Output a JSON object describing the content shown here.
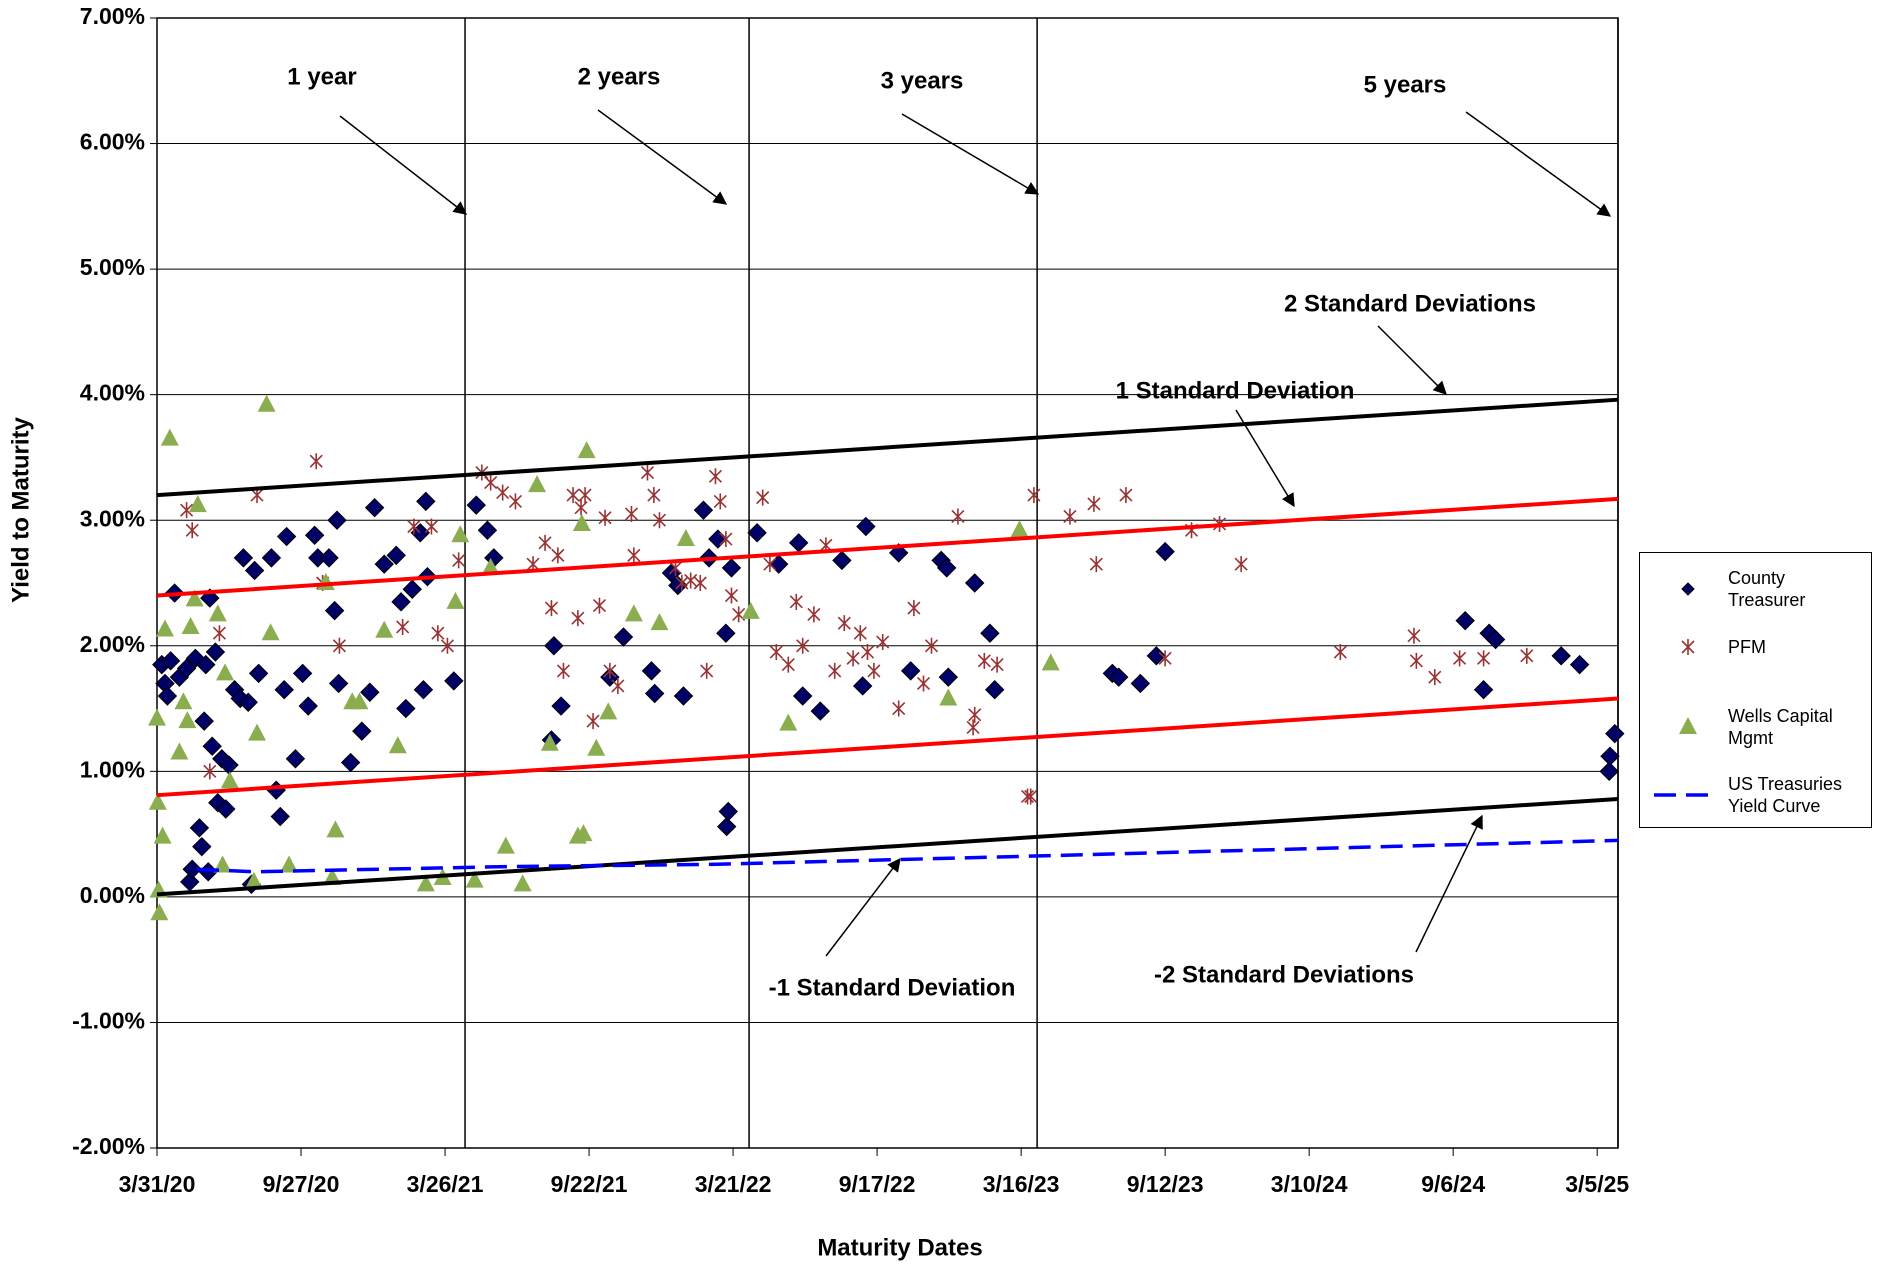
{
  "chart_data": {
    "type": "scatter",
    "y_axis_label": "Yield to Maturity",
    "x_axis_label": "Maturity Dates",
    "xlim": [
      "2020-03-31",
      "2025-03-31"
    ],
    "ylim": [
      -2,
      7
    ],
    "grid": true,
    "legend": "right",
    "xticks": [
      {
        "value": "2020-03-31",
        "label": "3/31/20"
      },
      {
        "value": "2020-09-27",
        "label": "9/27/20"
      },
      {
        "value": "2021-03-26",
        "label": "3/26/21"
      },
      {
        "value": "2021-09-22",
        "label": "9/22/21"
      },
      {
        "value": "2022-03-21",
        "label": "3/21/22"
      },
      {
        "value": "2022-09-17",
        "label": "9/17/22"
      },
      {
        "value": "2023-03-16",
        "label": "3/16/23"
      },
      {
        "value": "2023-09-12",
        "label": "9/12/23"
      },
      {
        "value": "2024-03-10",
        "label": "3/10/24"
      },
      {
        "value": "2024-09-06",
        "label": "9/6/24"
      },
      {
        "value": "2025-03-05",
        "label": "3/5/25"
      }
    ],
    "yticks": [
      {
        "value": 7,
        "label": "7.00%"
      },
      {
        "value": 6,
        "label": "6.00%"
      },
      {
        "value": 5,
        "label": "5.00%"
      },
      {
        "value": 4,
        "label": "4.00%"
      },
      {
        "value": 3,
        "label": "3.00%"
      },
      {
        "value": 2,
        "label": "2.00%"
      },
      {
        "value": 1,
        "label": "1.00%"
      },
      {
        "value": 0,
        "label": "0.00%"
      },
      {
        "value": -1,
        "label": "-1.00%"
      },
      {
        "value": -2,
        "label": "-2.00%"
      }
    ],
    "series": [
      {
        "name": "County Treasurer",
        "type": "scatter",
        "marker": "diamond",
        "color": "#000066",
        "x": [
          "2020-04-06",
          "2020-04-10",
          "2020-04-13",
          "2020-04-17",
          "2020-04-22",
          "2020-04-28",
          "2020-05-07",
          "2020-05-11",
          "2020-05-14",
          "2020-05-18",
          "2020-05-23",
          "2020-05-26",
          "2020-05-29",
          "2020-05-31",
          "2020-06-03",
          "2020-06-05",
          "2020-06-08",
          "2020-06-12",
          "2020-06-15",
          "2020-06-20",
          "2020-06-25",
          "2020-06-29",
          "2020-07-06",
          "2020-07-13",
          "2020-07-17",
          "2020-07-23",
          "2020-07-27",
          "2020-07-31",
          "2020-08-05",
          "2020-08-21",
          "2020-08-27",
          "2020-09-01",
          "2020-09-06",
          "2020-09-09",
          "2020-09-20",
          "2020-09-29",
          "2020-10-06",
          "2020-10-14",
          "2020-10-18",
          "2020-11-01",
          "2020-11-08",
          "2020-11-11",
          "2020-11-13",
          "2020-11-28",
          "2020-12-12",
          "2020-12-22",
          "2020-12-28",
          "2021-01-09",
          "2021-01-24",
          "2021-01-30",
          "2021-02-05",
          "2021-02-13",
          "2021-02-23",
          "2021-02-27",
          "2021-03-02",
          "2021-03-04",
          "2021-04-06",
          "2021-05-04",
          "2021-05-18",
          "2021-05-26",
          "2021-08-06",
          "2021-08-09",
          "2021-08-18",
          "2021-10-18",
          "2021-11-04",
          "2021-12-09",
          "2021-12-13",
          "2022-01-03",
          "2022-01-11",
          "2022-01-18",
          "2022-02-12",
          "2022-02-19",
          "2022-03-02",
          "2022-03-12",
          "2022-03-13",
          "2022-03-15",
          "2022-03-19",
          "2022-04-20",
          "2022-05-17",
          "2022-06-11",
          "2022-06-16",
          "2022-07-08",
          "2022-08-04",
          "2022-08-30",
          "2022-09-03",
          "2022-10-14",
          "2022-10-29",
          "2022-12-06",
          "2022-12-13",
          "2022-12-15",
          "2023-01-17",
          "2023-02-05",
          "2023-02-11",
          "2023-07-08",
          "2023-07-16",
          "2023-08-12",
          "2023-09-01",
          "2023-09-12",
          "2024-09-21",
          "2024-10-14",
          "2024-10-21",
          "2024-10-29",
          "2025-01-19",
          "2025-02-11",
          "2025-03-20",
          "2025-03-21",
          "2025-03-27"
        ],
        "values": [
          1.85,
          1.7,
          1.6,
          1.88,
          2.42,
          1.75,
          1.82,
          0.12,
          0.22,
          1.9,
          0.55,
          0.4,
          1.4,
          1.85,
          0.2,
          2.38,
          1.2,
          1.95,
          0.75,
          1.1,
          0.7,
          1.05,
          1.65,
          1.58,
          2.7,
          1.55,
          0.1,
          2.6,
          1.78,
          2.7,
          0.85,
          0.64,
          1.65,
          2.87,
          1.1,
          1.78,
          1.52,
          2.88,
          2.7,
          2.7,
          2.28,
          3.0,
          1.7,
          1.07,
          1.32,
          1.63,
          3.1,
          2.65,
          2.72,
          2.35,
          1.5,
          2.45,
          2.9,
          1.65,
          3.15,
          2.55,
          1.72,
          3.12,
          2.92,
          2.7,
          1.25,
          2.0,
          1.52,
          1.75,
          2.07,
          1.8,
          1.62,
          2.58,
          2.48,
          1.6,
          3.08,
          2.7,
          2.85,
          2.1,
          0.56,
          0.68,
          2.62,
          2.9,
          2.65,
          2.82,
          1.6,
          1.48,
          2.68,
          1.68,
          2.95,
          2.74,
          1.8,
          2.68,
          2.62,
          1.75,
          2.5,
          2.1,
          1.65,
          1.78,
          1.75,
          1.7,
          1.92,
          2.75,
          2.2,
          1.65,
          2.1,
          2.05,
          1.92,
          1.85,
          1.0,
          1.12,
          1.3
        ]
      },
      {
        "name": "PFM",
        "type": "scatter",
        "marker": "x",
        "color": "#993333",
        "x": [
          "2020-05-07",
          "2020-05-14",
          "2020-06-05",
          "2020-06-17",
          "2020-08-03",
          "2020-10-16",
          "2020-10-24",
          "2020-11-14",
          "2021-02-01",
          "2021-02-15",
          "2021-03-09",
          "2021-03-17",
          "2021-03-29",
          "2021-04-12",
          "2021-05-11",
          "2021-05-22",
          "2021-06-06",
          "2021-06-22",
          "2021-07-14",
          "2021-07-29",
          "2021-08-06",
          "2021-08-14",
          "2021-08-21",
          "2021-09-02",
          "2021-09-08",
          "2021-09-12",
          "2021-09-17",
          "2021-09-27",
          "2021-10-05",
          "2021-10-12",
          "2021-10-18",
          "2021-10-28",
          "2021-11-14",
          "2021-11-17",
          "2021-12-04",
          "2021-12-12",
          "2021-12-19",
          "2022-01-08",
          "2022-01-16",
          "2022-01-27",
          "2022-02-08",
          "2022-02-16",
          "2022-02-27",
          "2022-03-05",
          "2022-03-12",
          "2022-03-19",
          "2022-03-28",
          "2022-04-27",
          "2022-05-06",
          "2022-05-14",
          "2022-05-29",
          "2022-06-08",
          "2022-06-16",
          "2022-06-30",
          "2022-07-15",
          "2022-07-26",
          "2022-08-07",
          "2022-08-18",
          "2022-08-27",
          "2022-09-05",
          "2022-09-13",
          "2022-09-24",
          "2022-10-14",
          "2022-11-02",
          "2022-11-14",
          "2022-11-24",
          "2022-12-27",
          "2023-01-15",
          "2023-01-17",
          "2023-01-29",
          "2023-02-14",
          "2023-03-24",
          "2023-03-28",
          "2023-04-01",
          "2023-05-16",
          "2023-06-15",
          "2023-06-18",
          "2023-07-25",
          "2023-09-12",
          "2023-10-15",
          "2023-11-19",
          "2023-12-16",
          "2024-04-18",
          "2024-07-19",
          "2024-07-22",
          "2024-08-14",
          "2024-09-14",
          "2024-10-14",
          "2024-12-07"
        ],
        "values": [
          3.08,
          2.92,
          1.0,
          2.1,
          3.2,
          3.47,
          2.5,
          2.0,
          2.15,
          2.95,
          2.95,
          2.1,
          2.0,
          2.68,
          3.38,
          3.3,
          3.22,
          3.15,
          2.65,
          2.82,
          2.3,
          2.72,
          1.8,
          3.2,
          2.22,
          3.1,
          3.2,
          1.4,
          2.32,
          3.02,
          1.8,
          1.68,
          3.05,
          2.72,
          3.38,
          3.2,
          3.0,
          2.62,
          2.5,
          2.52,
          2.5,
          1.8,
          3.35,
          3.15,
          2.85,
          2.4,
          2.25,
          3.18,
          2.65,
          1.95,
          1.85,
          2.35,
          2.0,
          2.25,
          2.8,
          1.8,
          2.18,
          1.9,
          2.1,
          1.95,
          1.8,
          2.03,
          1.5,
          2.3,
          1.7,
          2.0,
          3.03,
          1.35,
          1.45,
          1.88,
          1.85,
          0.8,
          0.8,
          3.2,
          3.03,
          3.13,
          2.65,
          3.2,
          1.9,
          2.92,
          2.97,
          2.65,
          1.95,
          2.08,
          1.88,
          1.75,
          1.9,
          1.9,
          1.92
        ]
      },
      {
        "name": "Wells Capital Mgmt",
        "type": "scatter",
        "marker": "triangle",
        "color": "#8AAE4F",
        "x": [
          "2020-03-31",
          "2020-04-01",
          "2020-04-02",
          "2020-04-03",
          "2020-04-07",
          "2020-04-10",
          "2020-04-16",
          "2020-04-28",
          "2020-05-03",
          "2020-05-08",
          "2020-05-12",
          "2020-05-17",
          "2020-05-21",
          "2020-06-15",
          "2020-06-21",
          "2020-06-24",
          "2020-06-30",
          "2020-07-30",
          "2020-08-03",
          "2020-08-15",
          "2020-08-20",
          "2020-09-12",
          "2020-10-28",
          "2020-11-05",
          "2020-11-09",
          "2020-11-30",
          "2020-12-09",
          "2021-01-09",
          "2021-01-26",
          "2021-03-02",
          "2021-03-23",
          "2021-04-08",
          "2021-04-14",
          "2021-05-02",
          "2021-05-22",
          "2021-06-10",
          "2021-07-01",
          "2021-07-19",
          "2021-08-04",
          "2021-09-08",
          "2021-09-13",
          "2021-09-15",
          "2021-09-19",
          "2021-10-01",
          "2021-10-16",
          "2021-11-17",
          "2021-12-19",
          "2022-01-21",
          "2022-04-12",
          "2022-05-29",
          "2022-12-15",
          "2023-03-14",
          "2023-04-22"
        ],
        "values": [
          1.42,
          0.75,
          0.05,
          -0.13,
          0.48,
          2.13,
          3.65,
          1.15,
          1.55,
          1.4,
          2.15,
          2.37,
          3.12,
          2.25,
          0.25,
          1.78,
          0.92,
          0.12,
          1.3,
          3.92,
          2.1,
          0.25,
          2.5,
          0.15,
          0.53,
          1.55,
          1.55,
          2.12,
          1.2,
          0.1,
          0.15,
          2.35,
          2.88,
          0.13,
          2.62,
          0.4,
          0.1,
          3.28,
          1.22,
          0.48,
          2.97,
          0.5,
          3.55,
          1.18,
          1.47,
          2.25,
          2.18,
          2.85,
          2.27,
          1.38,
          1.58,
          2.92,
          1.86
        ]
      },
      {
        "name": "US Treasuries Yield Curve",
        "type": "line",
        "marker": "line",
        "color": "#0000FF",
        "x": [
          "2020-05-20",
          "2020-08-01",
          "2021-06-01",
          "2022-03-01",
          "2023-03-01",
          "2025-03-31"
        ],
        "values": [
          0.22,
          0.2,
          0.24,
          0.26,
          0.32,
          0.45
        ]
      }
    ],
    "bands": [
      {
        "name": "2 Standard Deviations",
        "color": "#000000",
        "x": [
          "2020-03-31",
          "2025-03-31"
        ],
        "values": [
          3.2,
          3.96
        ]
      },
      {
        "name": "1 Standard Deviation",
        "color": "#FF0000",
        "x": [
          "2020-03-31",
          "2025-03-31"
        ],
        "values": [
          2.4,
          3.17
        ]
      },
      {
        "name": "-1 Standard Deviation",
        "color": "#FF0000",
        "x": [
          "2020-03-31",
          "2025-03-31"
        ],
        "values": [
          0.81,
          1.58
        ]
      },
      {
        "name": "-2 Standard Deviations",
        "color": "#000000",
        "x": [
          "2020-03-31",
          "2025-03-31"
        ],
        "values": [
          0.02,
          0.78
        ]
      }
    ],
    "vlines": [
      {
        "label": "1 year",
        "x": "2021-04-20"
      },
      {
        "label": "2 years",
        "x": "2022-04-10"
      },
      {
        "label": "3 years",
        "x": "2023-04-05"
      },
      {
        "label": "5 years",
        "x": "2025-03-31"
      }
    ]
  }
}
